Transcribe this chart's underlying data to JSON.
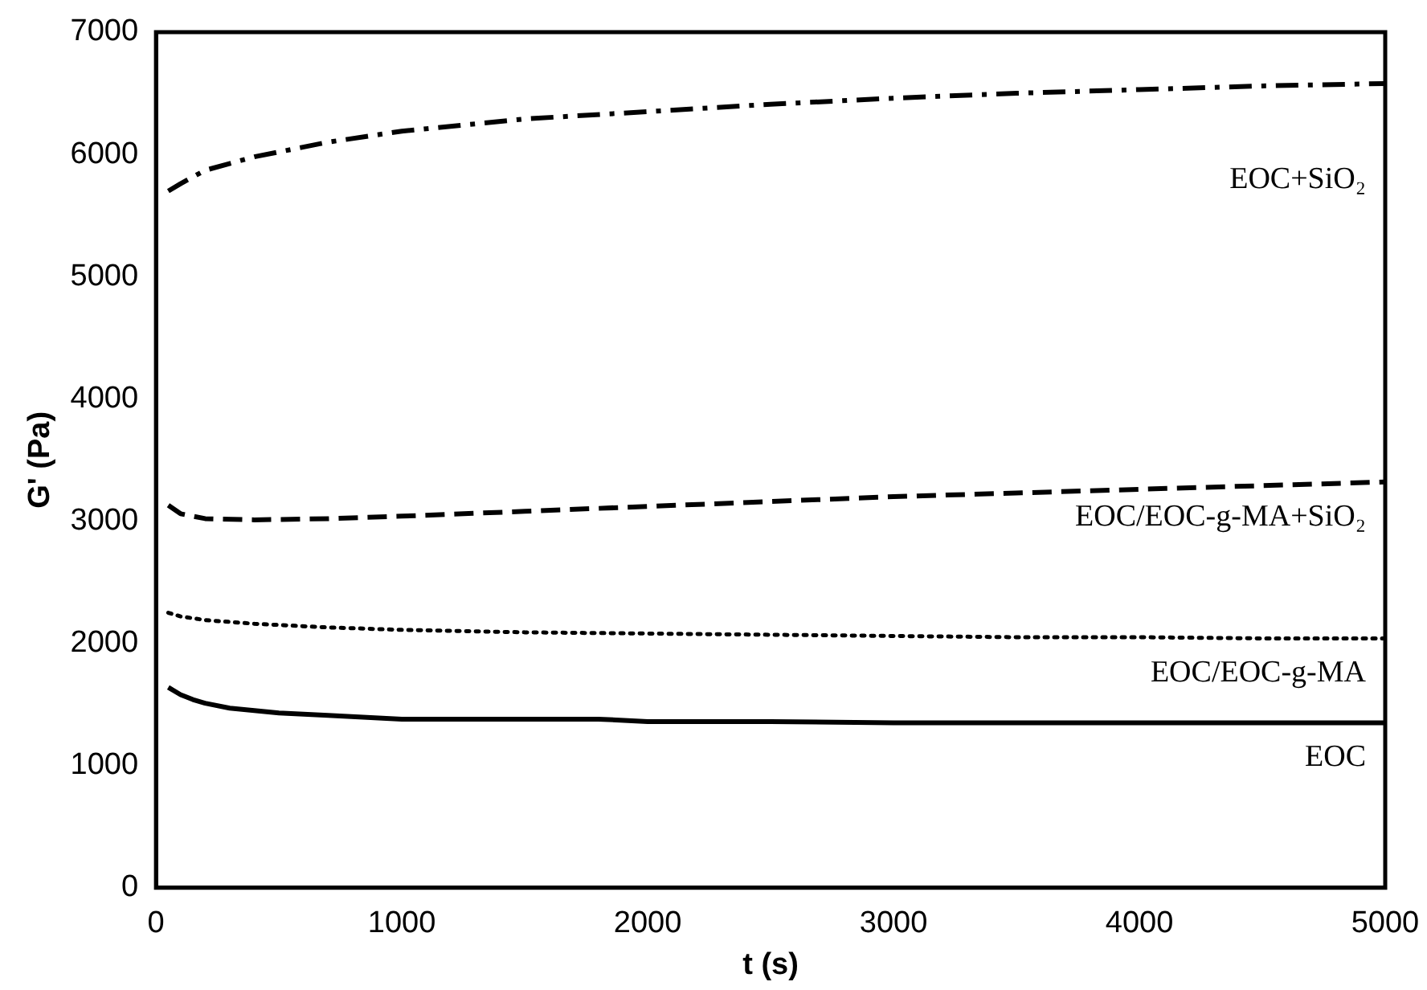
{
  "chart_data": {
    "type": "line",
    "xlabel": "t (s)",
    "ylabel": "G' (Pa)",
    "xlim": [
      0,
      5000
    ],
    "xticks": [
      0,
      1000,
      2000,
      3000,
      4000,
      5000
    ],
    "ylim": [
      0,
      7000
    ],
    "yticks": [
      0,
      1000,
      2000,
      3000,
      4000,
      5000,
      6000,
      7000
    ],
    "grid": false,
    "legend": false,
    "marker": "none",
    "series": [
      {
        "name": "EOC+SiO₂",
        "color": "#000000",
        "line_style": "dashdot",
        "x": [
          50,
          100,
          200,
          400,
          700,
          1000,
          1500,
          2000,
          2500,
          3000,
          3500,
          4000,
          4500,
          5000
        ],
        "values": [
          5700,
          5760,
          5870,
          5980,
          6100,
          6190,
          6290,
          6350,
          6410,
          6460,
          6500,
          6530,
          6560,
          6580
        ]
      },
      {
        "name": "EOC/EOC-g-MA+SiO₂",
        "color": "#000000",
        "line_style": "dashed",
        "x": [
          50,
          100,
          200,
          400,
          700,
          1000,
          1500,
          2000,
          2500,
          3000,
          3500,
          4000,
          4500,
          5000
        ],
        "values": [
          3130,
          3060,
          3020,
          3010,
          3020,
          3040,
          3080,
          3120,
          3160,
          3200,
          3230,
          3260,
          3290,
          3320
        ]
      },
      {
        "name": "EOC/EOC-g-MA",
        "color": "#000000",
        "line_style": "dotted",
        "x": [
          50,
          100,
          200,
          400,
          700,
          1000,
          1500,
          2000,
          2500,
          3000,
          3500,
          4000,
          4500,
          5000
        ],
        "values": [
          2250,
          2220,
          2190,
          2160,
          2130,
          2110,
          2090,
          2080,
          2070,
          2060,
          2050,
          2050,
          2040,
          2040
        ]
      },
      {
        "name": "EOC",
        "color": "#000000",
        "line_style": "solid",
        "x": [
          50,
          100,
          150,
          200,
          300,
          500,
          700,
          1000,
          1500,
          1800,
          2000,
          2500,
          3000,
          4000,
          5000
        ],
        "values": [
          1640,
          1580,
          1540,
          1510,
          1470,
          1430,
          1410,
          1380,
          1380,
          1380,
          1360,
          1360,
          1350,
          1350,
          1350
        ]
      }
    ]
  }
}
